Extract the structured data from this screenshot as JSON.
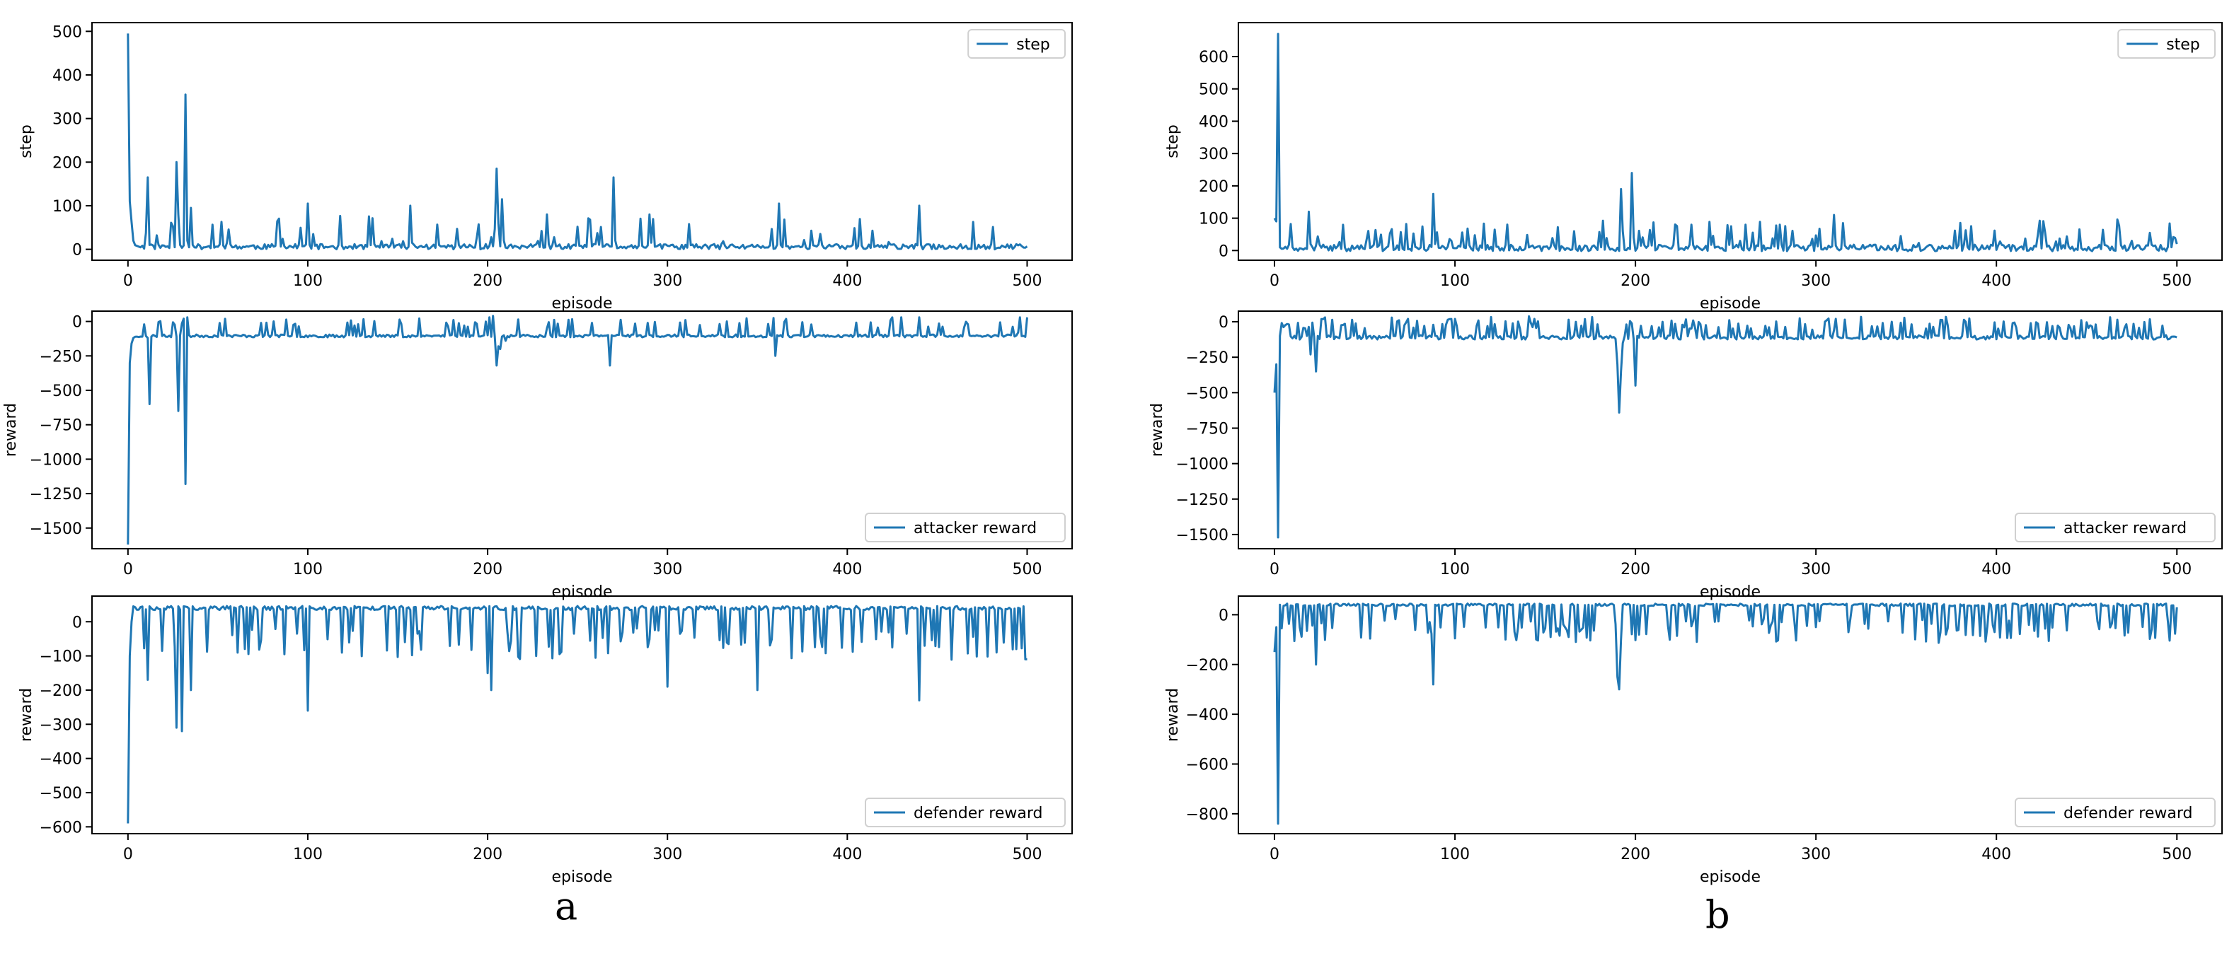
{
  "figure": {
    "panel_labels": [
      "a",
      "b"
    ],
    "series_color": "#1f77b4"
  },
  "chart_data": [
    {
      "id": "a-step",
      "type": "line",
      "panel": "a",
      "xlabel": "episode",
      "ylabel": "step",
      "legend": "step",
      "legend_loc": "upper-right",
      "xlim": [
        -20,
        525
      ],
      "ylim": [
        -25,
        520
      ],
      "xticks": [
        0,
        100,
        200,
        300,
        400,
        500
      ],
      "yticks": [
        0,
        100,
        200,
        300,
        400,
        500
      ],
      "seed": 11,
      "base": 6,
      "base_jitter": 6,
      "spike_prob": 0.13,
      "spike_range": [
        10,
        70
      ],
      "anchors": [
        [
          0,
          495
        ],
        [
          1,
          110
        ],
        [
          3,
          20
        ],
        [
          5,
          8
        ],
        [
          11,
          165
        ],
        [
          12,
          10
        ],
        [
          27,
          200
        ],
        [
          28,
          80
        ],
        [
          29,
          10
        ],
        [
          32,
          355
        ],
        [
          33,
          20
        ],
        [
          35,
          95
        ],
        [
          36,
          10
        ],
        [
          100,
          105
        ],
        [
          101,
          10
        ],
        [
          157,
          100
        ],
        [
          158,
          15
        ],
        [
          205,
          185
        ],
        [
          206,
          60
        ],
        [
          208,
          115
        ],
        [
          209,
          20
        ],
        [
          270,
          165
        ],
        [
          271,
          20
        ],
        [
          290,
          80
        ],
        [
          291,
          15
        ],
        [
          362,
          105
        ],
        [
          363,
          10
        ],
        [
          440,
          100
        ],
        [
          441,
          10
        ]
      ]
    },
    {
      "id": "a-attacker",
      "type": "line",
      "panel": "a",
      "xlabel": "episode",
      "ylabel": "reward",
      "legend": "attacker reward",
      "legend_loc": "lower-right",
      "xlim": [
        -20,
        525
      ],
      "ylim": [
        -1650,
        75
      ],
      "xticks": [
        0,
        100,
        200,
        300,
        400,
        500
      ],
      "yticks": [
        0,
        -250,
        -500,
        -750,
        -1000,
        -1250,
        -1500
      ],
      "seed": 23,
      "base": -105,
      "base_jitter": 10,
      "spike_prob": 0.14,
      "spike_range": [
        60,
        130
      ],
      "anchors": [
        [
          0,
          -1620
        ],
        [
          1,
          -300
        ],
        [
          2,
          -160
        ],
        [
          3,
          -120
        ],
        [
          11,
          -120
        ],
        [
          12,
          -600
        ],
        [
          13,
          -110
        ],
        [
          27,
          -110
        ],
        [
          28,
          -650
        ],
        [
          29,
          -100
        ],
        [
          31,
          20
        ],
        [
          32,
          -1180
        ],
        [
          33,
          30
        ],
        [
          34,
          -100
        ],
        [
          200,
          -100
        ],
        [
          201,
          30
        ],
        [
          203,
          40
        ],
        [
          205,
          -320
        ],
        [
          206,
          -180
        ],
        [
          207,
          -200
        ],
        [
          210,
          -140
        ],
        [
          268,
          -320
        ],
        [
          269,
          -100
        ],
        [
          360,
          -250
        ],
        [
          361,
          -100
        ],
        [
          425,
          30
        ],
        [
          430,
          30
        ],
        [
          440,
          30
        ],
        [
          495,
          -80
        ],
        [
          496,
          30
        ],
        [
          500,
          30
        ]
      ]
    },
    {
      "id": "a-defender",
      "type": "line",
      "panel": "a",
      "xlabel": "episode",
      "ylabel": "reward",
      "legend": "defender reward",
      "legend_loc": "lower-right",
      "xlim": [
        -20,
        525
      ],
      "ylim": [
        -620,
        75
      ],
      "xticks": [
        0,
        100,
        200,
        300,
        400,
        500
      ],
      "yticks": [
        0,
        -100,
        -200,
        -300,
        -400,
        -500,
        -600
      ],
      "seed": 37,
      "base": 40,
      "base_jitter": 6,
      "spike_prob": 0.2,
      "spike_range": [
        -150,
        -60
      ],
      "anchors": [
        [
          0,
          -590
        ],
        [
          1,
          -100
        ],
        [
          2,
          0
        ],
        [
          3,
          45
        ],
        [
          11,
          -170
        ],
        [
          12,
          45
        ],
        [
          27,
          -310
        ],
        [
          28,
          45
        ],
        [
          30,
          -320
        ],
        [
          31,
          45
        ],
        [
          35,
          -200
        ],
        [
          36,
          45
        ],
        [
          100,
          -260
        ],
        [
          101,
          45
        ],
        [
          200,
          -150
        ],
        [
          202,
          -200
        ],
        [
          203,
          40
        ],
        [
          300,
          -190
        ],
        [
          301,
          45
        ],
        [
          350,
          -200
        ],
        [
          351,
          45
        ],
        [
          440,
          -230
        ],
        [
          441,
          45
        ],
        [
          498,
          45
        ],
        [
          499,
          -110
        ],
        [
          500,
          -110
        ]
      ]
    },
    {
      "id": "b-step",
      "type": "line",
      "panel": "b",
      "xlabel": "episode",
      "ylabel": "step",
      "legend": "step",
      "legend_loc": "upper-right",
      "xlim": [
        -20,
        525
      ],
      "ylim": [
        -30,
        705
      ],
      "xticks": [
        0,
        100,
        200,
        300,
        400,
        500
      ],
      "yticks": [
        0,
        100,
        200,
        300,
        400,
        500,
        600
      ],
      "seed": 41,
      "base": 8,
      "base_jitter": 10,
      "spike_prob": 0.17,
      "spike_range": [
        20,
        80
      ],
      "anchors": [
        [
          0,
          100
        ],
        [
          1,
          90
        ],
        [
          2,
          670
        ],
        [
          3,
          10
        ],
        [
          18,
          5
        ],
        [
          19,
          120
        ],
        [
          20,
          20
        ],
        [
          88,
          175
        ],
        [
          89,
          20
        ],
        [
          192,
          190
        ],
        [
          193,
          60
        ],
        [
          198,
          240
        ],
        [
          199,
          40
        ],
        [
          310,
          110
        ],
        [
          311,
          15
        ],
        [
          475,
          30
        ],
        [
          476,
          5
        ],
        [
          480,
          5
        ],
        [
          500,
          20
        ]
      ]
    },
    {
      "id": "b-attacker",
      "type": "line",
      "panel": "b",
      "xlabel": "episode",
      "ylabel": "reward",
      "legend": "attacker reward",
      "legend_loc": "lower-right",
      "xlim": [
        -20,
        525
      ],
      "ylim": [
        -1600,
        75
      ],
      "xticks": [
        0,
        100,
        200,
        300,
        400,
        500
      ],
      "yticks": [
        0,
        -250,
        -500,
        -750,
        -1000,
        -1250,
        -1500
      ],
      "seed": 53,
      "base": -110,
      "base_jitter": 15,
      "spike_prob": 0.3,
      "spike_range": [
        60,
        140
      ],
      "anchors": [
        [
          0,
          -500
        ],
        [
          1,
          -300
        ],
        [
          2,
          -1520
        ],
        [
          3,
          -100
        ],
        [
          18,
          -100
        ],
        [
          20,
          -230
        ],
        [
          23,
          -350
        ],
        [
          24,
          -100
        ],
        [
          190,
          -300
        ],
        [
          191,
          -640
        ],
        [
          192,
          -350
        ],
        [
          193,
          -150
        ],
        [
          200,
          -450
        ],
        [
          201,
          -100
        ],
        [
          470,
          -100
        ],
        [
          500,
          -110
        ]
      ]
    },
    {
      "id": "b-defender",
      "type": "line",
      "panel": "b",
      "xlabel": "episode",
      "ylabel": "reward",
      "legend": "defender reward",
      "legend_loc": "lower-right",
      "xlim": [
        -20,
        525
      ],
      "ylim": [
        -880,
        75
      ],
      "xticks": [
        0,
        100,
        200,
        300,
        400,
        500
      ],
      "yticks": [
        0,
        -200,
        -400,
        -600,
        -800
      ],
      "seed": 67,
      "base": 40,
      "base_jitter": 5,
      "spike_prob": 0.22,
      "spike_range": [
        -150,
        -60
      ],
      "anchors": [
        [
          0,
          -150
        ],
        [
          1,
          -50
        ],
        [
          2,
          -840
        ],
        [
          3,
          40
        ],
        [
          23,
          -200
        ],
        [
          24,
          40
        ],
        [
          88,
          -280
        ],
        [
          89,
          40
        ],
        [
          190,
          -250
        ],
        [
          191,
          -300
        ],
        [
          192,
          -100
        ],
        [
          193,
          40
        ],
        [
          470,
          40
        ],
        [
          500,
          30
        ]
      ]
    }
  ]
}
